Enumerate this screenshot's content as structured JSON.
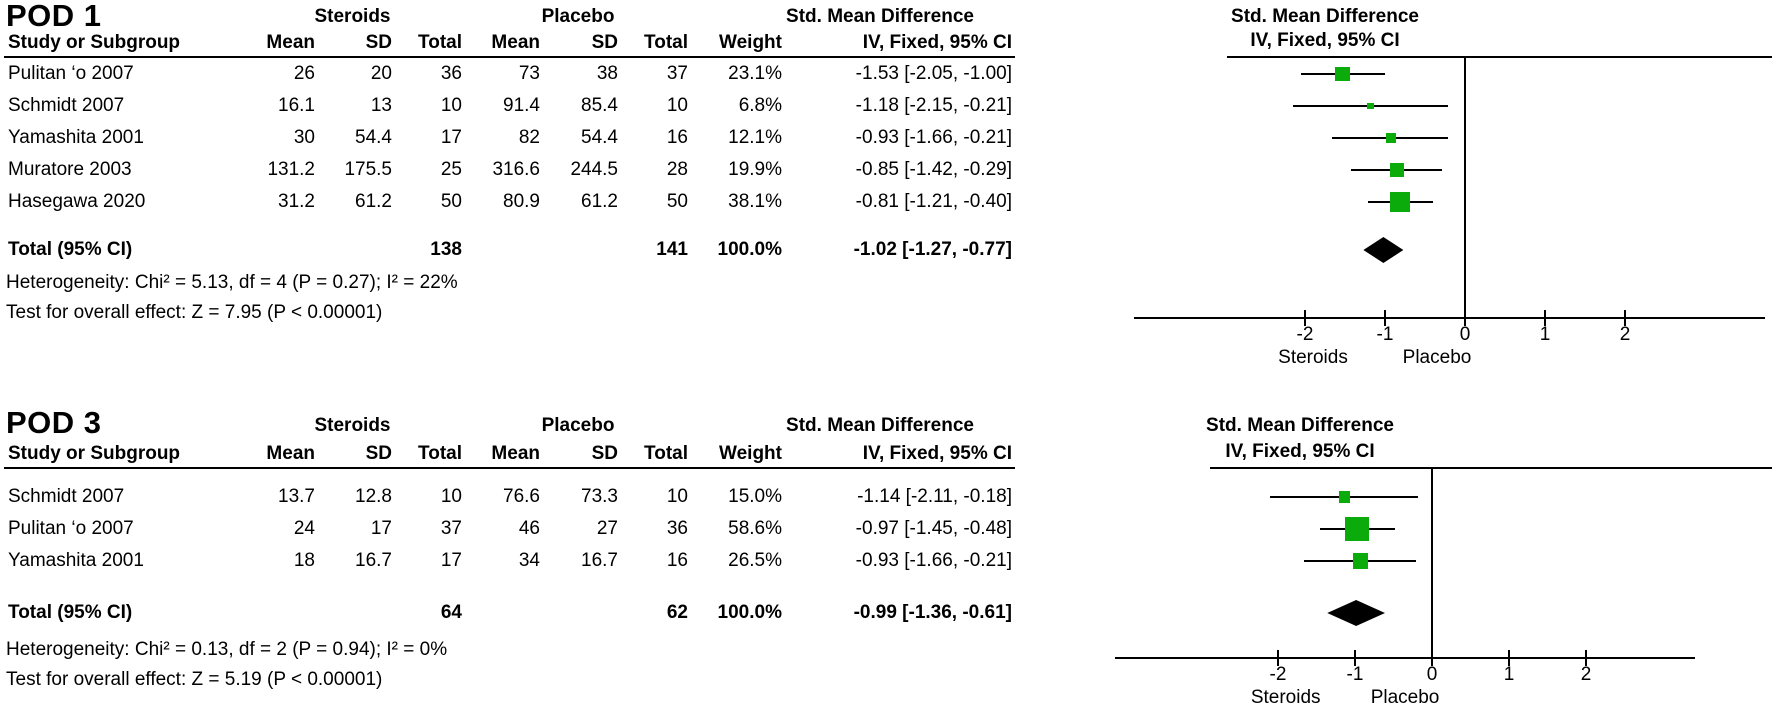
{
  "figure": {
    "marker_color": "#0aab0a",
    "line_color": "#000000",
    "diamond_color": "#000000"
  },
  "chart_data": [
    {
      "type": "forest",
      "title": "POD 1",
      "group_headers": [
        "Steroids",
        "Placebo"
      ],
      "effect_header": "Std. Mean Difference",
      "method_header": "IV, Fixed, 95% CI",
      "columns": [
        "Study or Subgroup",
        "Mean",
        "SD",
        "Total",
        "Mean",
        "SD",
        "Total",
        "Weight",
        "IV, Fixed, 95% CI"
      ],
      "studies": [
        {
          "name": "Pulitan ‘o 2007",
          "mean1": "26",
          "sd1": "20",
          "total1": "36",
          "mean2": "73",
          "sd2": "38",
          "total2": "37",
          "weight": "23.1%",
          "weight_pct": 23.1,
          "ci_label": "-1.53 [-2.05, -1.00]",
          "est": -1.53,
          "lo": -2.05,
          "hi": -1.0
        },
        {
          "name": "Schmidt 2007",
          "mean1": "16.1",
          "sd1": "13",
          "total1": "10",
          "mean2": "91.4",
          "sd2": "85.4",
          "total2": "10",
          "weight": "6.8%",
          "weight_pct": 6.8,
          "ci_label": "-1.18 [-2.15, -0.21]",
          "est": -1.18,
          "lo": -2.15,
          "hi": -0.21
        },
        {
          "name": "Yamashita 2001",
          "mean1": "30",
          "sd1": "54.4",
          "total1": "17",
          "mean2": "82",
          "sd2": "54.4",
          "total2": "16",
          "weight": "12.1%",
          "weight_pct": 12.1,
          "ci_label": "-0.93 [-1.66, -0.21]",
          "est": -0.93,
          "lo": -1.66,
          "hi": -0.21
        },
        {
          "name": "Muratore 2003",
          "mean1": "131.2",
          "sd1": "175.5",
          "total1": "25",
          "mean2": "316.6",
          "sd2": "244.5",
          "total2": "28",
          "weight": "19.9%",
          "weight_pct": 19.9,
          "ci_label": "-0.85 [-1.42, -0.29]",
          "est": -0.85,
          "lo": -1.42,
          "hi": -0.29
        },
        {
          "name": "Hasegawa 2020",
          "mean1": "31.2",
          "sd1": "61.2",
          "total1": "50",
          "mean2": "80.9",
          "sd2": "61.2",
          "total2": "50",
          "weight": "38.1%",
          "weight_pct": 38.1,
          "ci_label": "-0.81 [-1.21, -0.40]",
          "est": -0.81,
          "lo": -1.21,
          "hi": -0.4
        }
      ],
      "total": {
        "label": "Total (95% CI)",
        "total1": "138",
        "total2": "141",
        "weight": "100.0%",
        "ci_label": "-1.02 [-1.27, -0.77]",
        "est": -1.02,
        "lo": -1.27,
        "hi": -0.77
      },
      "heterogeneity": "Heterogeneity: Chi² = 5.13, df = 4 (P = 0.27); I² = 22%",
      "overall_effect": "Test for overall effect: Z = 7.95 (P < 0.00001)",
      "axis": {
        "ticks": [
          -2,
          -1,
          0,
          1,
          2
        ],
        "xlim_left": -4.1,
        "xlim_right": 3.8,
        "left_label": "Steroids",
        "right_label": "Placebo"
      }
    },
    {
      "type": "forest",
      "title": "POD 3",
      "group_headers": [
        "Steroids",
        "Placebo"
      ],
      "effect_header": "Std. Mean Difference",
      "method_header": "IV, Fixed, 95% CI",
      "columns": [
        "Study or Subgroup",
        "Mean",
        "SD",
        "Total",
        "Mean",
        "SD",
        "Total",
        "Weight",
        "IV, Fixed, 95% CI"
      ],
      "studies": [
        {
          "name": "Schmidt 2007",
          "mean1": "13.7",
          "sd1": "12.8",
          "total1": "10",
          "mean2": "76.6",
          "sd2": "73.3",
          "total2": "10",
          "weight": "15.0%",
          "weight_pct": 15.0,
          "ci_label": "-1.14 [-2.11, -0.18]",
          "est": -1.14,
          "lo": -2.11,
          "hi": -0.18
        },
        {
          "name": "Pulitan ‘o 2007",
          "mean1": "24",
          "sd1": "17",
          "total1": "37",
          "mean2": "46",
          "sd2": "27",
          "total2": "36",
          "weight": "58.6%",
          "weight_pct": 58.6,
          "ci_label": "-0.97 [-1.45, -0.48]",
          "est": -0.97,
          "lo": -1.45,
          "hi": -0.48
        },
        {
          "name": "Yamashita 2001",
          "mean1": "18",
          "sd1": "16.7",
          "total1": "17",
          "mean2": "34",
          "sd2": "16.7",
          "total2": "16",
          "weight": "26.5%",
          "weight_pct": 26.5,
          "ci_label": "-0.93 [-1.66, -0.21]",
          "est": -0.93,
          "lo": -1.66,
          "hi": -0.21
        }
      ],
      "total": {
        "label": "Total (95% CI)",
        "total1": "64",
        "total2": "62",
        "weight": "100.0%",
        "ci_label": "-0.99 [-1.36, -0.61]",
        "est": -0.99,
        "lo": -1.36,
        "hi": -0.61
      },
      "heterogeneity": "Heterogeneity: Chi² = 0.13, df = 2 (P = 0.94); I² = 0%",
      "overall_effect": "Test for overall effect: Z = 5.19 (P < 0.00001)",
      "axis": {
        "ticks": [
          -2,
          -1,
          0,
          1,
          2
        ],
        "xlim_left": -4.1,
        "xlim_right": 3.4,
        "left_label": "Steroids",
        "right_label": "Placebo"
      }
    }
  ]
}
